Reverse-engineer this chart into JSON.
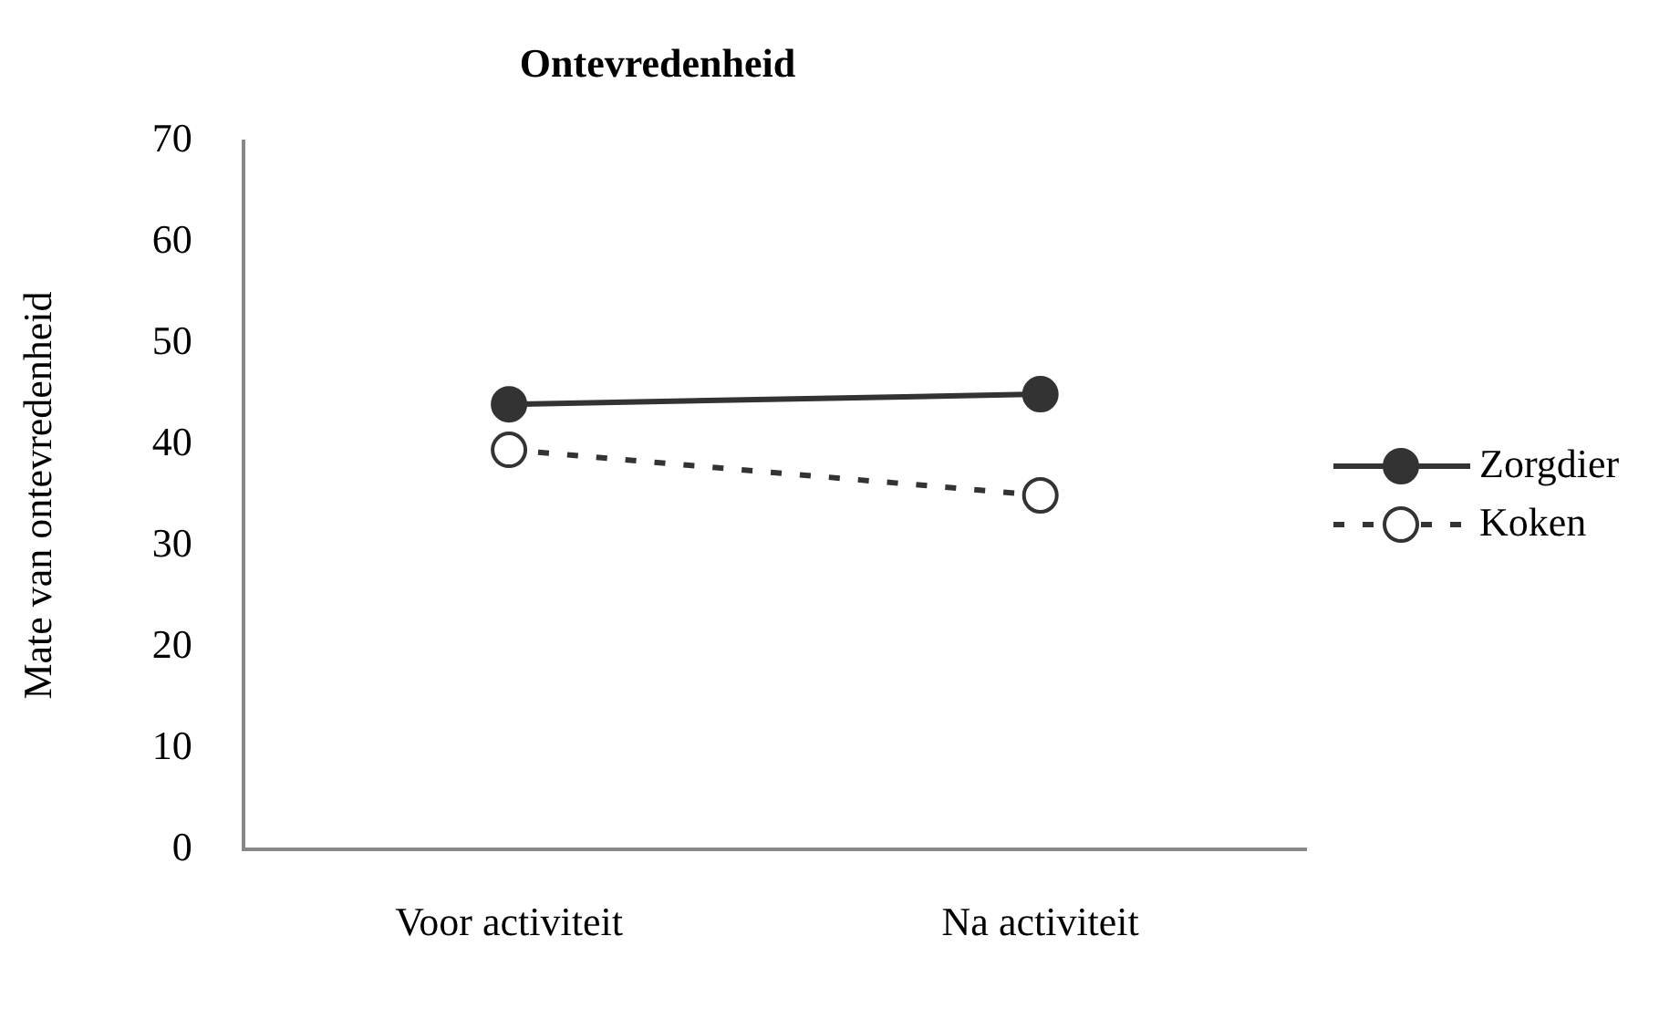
{
  "chart_data": {
    "type": "line",
    "title": "Ontevredenheid",
    "ylabel": "Mate van ontevredenheid",
    "categories": [
      "Voor activiteit",
      "Na activiteit"
    ],
    "series": [
      {
        "name": "Zorgdier",
        "color": "#333333",
        "values": [
          44,
          45
        ],
        "line_style": "solid"
      },
      {
        "name": "Koken",
        "color": "#333333",
        "values": [
          39.5,
          35
        ],
        "line_style": "dashed"
      }
    ],
    "ylim": [
      0,
      70
    ],
    "yticks": [
      0,
      10,
      20,
      30,
      40,
      50,
      60,
      70
    ],
    "grid": false,
    "legend": "right",
    "marker": "circle"
  }
}
